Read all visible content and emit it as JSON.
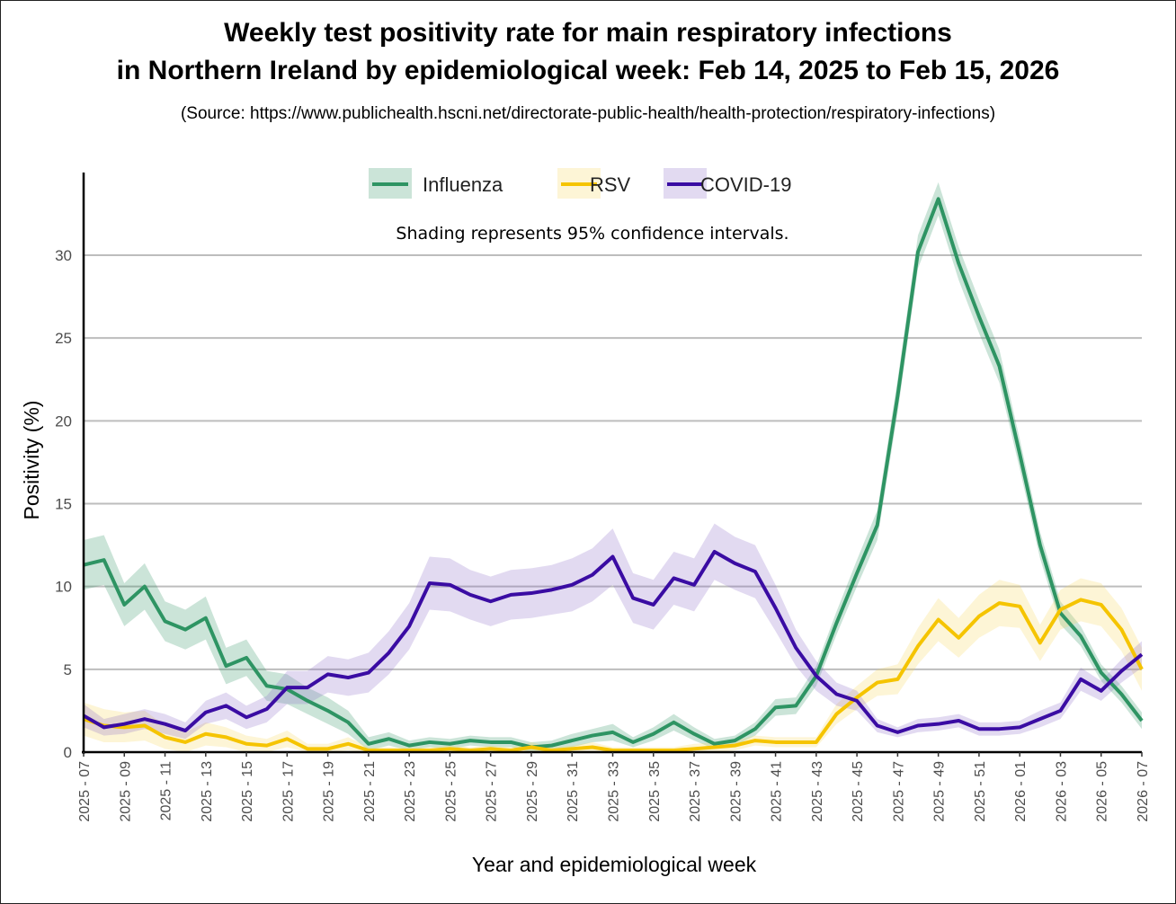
{
  "chart_data": {
    "type": "line",
    "title_line1": "Weekly test positivity rate for main respiratory infections",
    "title_line2": "in Northern Ireland by epidemiological week: Feb 14, 2025 to Feb 15, 2026",
    "subtitle": "(Source: https://www.publichealth.hscni.net/directorate-public-health/health-protection/respiratory-infections)",
    "annotation": "Shading represents 95% confidence intervals.",
    "xlabel": "Year and epidemiological week",
    "ylabel": "Positivity (%)",
    "ylim": [
      0,
      35
    ],
    "yticks": [
      0,
      5,
      10,
      15,
      20,
      25,
      30
    ],
    "grid": true,
    "legend_position": "top-center",
    "x": [
      "2025 - 07",
      "2025 - 08",
      "2025 - 09",
      "2025 - 10",
      "2025 - 11",
      "2025 - 12",
      "2025 - 13",
      "2025 - 14",
      "2025 - 15",
      "2025 - 16",
      "2025 - 17",
      "2025 - 18",
      "2025 - 19",
      "2025 - 20",
      "2025 - 21",
      "2025 - 22",
      "2025 - 23",
      "2025 - 24",
      "2025 - 25",
      "2025 - 26",
      "2025 - 27",
      "2025 - 28",
      "2025 - 29",
      "2025 - 30",
      "2025 - 31",
      "2025 - 32",
      "2025 - 33",
      "2025 - 34",
      "2025 - 35",
      "2025 - 36",
      "2025 - 37",
      "2025 - 38",
      "2025 - 39",
      "2025 - 40",
      "2025 - 41",
      "2025 - 42",
      "2025 - 43",
      "2025 - 44",
      "2025 - 45",
      "2025 - 46",
      "2025 - 47",
      "2025 - 48",
      "2025 - 49",
      "2025 - 50",
      "2025 - 51",
      "2025 - 52",
      "2026 - 01",
      "2026 - 02",
      "2026 - 03",
      "2026 - 04",
      "2026 - 05",
      "2026 - 06",
      "2026 - 07"
    ],
    "xtick_labels": [
      "2025 - 07",
      "2025 - 09",
      "2025 - 11",
      "2025 - 13",
      "2025 - 15",
      "2025 - 17",
      "2025 - 19",
      "2025 - 21",
      "2025 - 23",
      "2025 - 25",
      "2025 - 27",
      "2025 - 29",
      "2025 - 31",
      "2025 - 33",
      "2025 - 35",
      "2025 - 37",
      "2025 - 39",
      "2025 - 41",
      "2025 - 43",
      "2025 - 45",
      "2025 - 47",
      "2025 - 49",
      "2025 - 51",
      "2026 - 01",
      "2026 - 03",
      "2026 - 05",
      "2026 - 07"
    ],
    "series": [
      {
        "name": "Influenza",
        "color": "#2e9463",
        "band_color": "#2e9463",
        "values": [
          11.3,
          11.6,
          8.9,
          10.0,
          7.9,
          7.4,
          8.1,
          5.2,
          5.7,
          4.0,
          3.8,
          3.1,
          2.5,
          1.8,
          0.5,
          0.8,
          0.4,
          0.6,
          0.5,
          0.7,
          0.6,
          0.6,
          0.3,
          0.4,
          0.7,
          1.0,
          1.2,
          0.6,
          1.1,
          1.8,
          1.1,
          0.5,
          0.7,
          1.4,
          2.7,
          2.8,
          4.6,
          7.8,
          10.8,
          13.7,
          21.5,
          30.2,
          33.4,
          29.5,
          26.3,
          23.3,
          18.0,
          12.5,
          8.4,
          7.0,
          4.8,
          3.5,
          1.9
        ],
        "ci_halfwidth": [
          1.5,
          1.5,
          1.3,
          1.4,
          1.2,
          1.2,
          1.3,
          1.1,
          1.1,
          0.9,
          0.9,
          0.8,
          0.8,
          0.7,
          0.4,
          0.4,
          0.3,
          0.3,
          0.3,
          0.3,
          0.3,
          0.3,
          0.3,
          0.3,
          0.4,
          0.4,
          0.5,
          0.3,
          0.4,
          0.5,
          0.4,
          0.3,
          0.3,
          0.4,
          0.5,
          0.5,
          0.6,
          0.7,
          0.8,
          0.9,
          1.0,
          1.0,
          1.0,
          1.0,
          1.0,
          1.0,
          0.9,
          0.8,
          0.7,
          0.6,
          0.5,
          0.5,
          0.5
        ]
      },
      {
        "name": "RSV",
        "color": "#f5c400",
        "band_color": "#f8d75a",
        "values": [
          2.0,
          1.6,
          1.5,
          1.6,
          0.9,
          0.6,
          1.1,
          0.9,
          0.5,
          0.4,
          0.8,
          0.2,
          0.2,
          0.5,
          0.1,
          0.1,
          0.1,
          0.1,
          0.2,
          0.1,
          0.2,
          0.1,
          0.3,
          0.1,
          0.2,
          0.3,
          0.1,
          0.1,
          0.1,
          0.1,
          0.2,
          0.3,
          0.4,
          0.7,
          0.6,
          0.6,
          0.6,
          2.3,
          3.3,
          4.2,
          4.4,
          6.4,
          8.0,
          6.9,
          8.2,
          9.0,
          8.8,
          6.6,
          8.6,
          9.2,
          8.9,
          7.4,
          5.0
        ],
        "ci_halfwidth": [
          1.0,
          1.0,
          0.9,
          0.9,
          0.7,
          0.6,
          0.7,
          0.6,
          0.5,
          0.4,
          0.5,
          0.3,
          0.3,
          0.4,
          0.2,
          0.2,
          0.2,
          0.2,
          0.2,
          0.2,
          0.2,
          0.2,
          0.3,
          0.2,
          0.2,
          0.3,
          0.2,
          0.2,
          0.2,
          0.2,
          0.3,
          0.3,
          0.3,
          0.3,
          0.3,
          0.3,
          0.3,
          0.6,
          0.7,
          0.8,
          0.9,
          1.1,
          1.3,
          1.2,
          1.3,
          1.4,
          1.3,
          1.1,
          1.2,
          1.3,
          1.3,
          1.3,
          1.3
        ]
      },
      {
        "name": "COVID-19",
        "color": "#3a0ca3",
        "band_color": "#8b6cc7",
        "values": [
          2.2,
          1.5,
          1.7,
          2.0,
          1.7,
          1.3,
          2.4,
          2.8,
          2.1,
          2.6,
          3.9,
          3.9,
          4.7,
          4.5,
          4.8,
          6.0,
          7.6,
          10.2,
          10.1,
          9.5,
          9.1,
          9.5,
          9.6,
          9.8,
          10.1,
          10.7,
          11.8,
          9.3,
          8.9,
          10.5,
          10.1,
          12.1,
          11.4,
          10.9,
          8.7,
          6.3,
          4.6,
          3.5,
          3.1,
          1.6,
          1.2,
          1.6,
          1.7,
          1.9,
          1.4,
          1.4,
          1.5,
          2.0,
          2.5,
          4.4,
          3.7,
          4.9,
          5.9
        ],
        "ci_halfwidth": [
          0.7,
          0.5,
          0.6,
          0.6,
          0.6,
          0.5,
          0.7,
          0.8,
          0.7,
          0.8,
          1.0,
          1.0,
          1.1,
          1.1,
          1.2,
          1.3,
          1.4,
          1.6,
          1.6,
          1.5,
          1.5,
          1.5,
          1.5,
          1.5,
          1.6,
          1.6,
          1.7,
          1.5,
          1.5,
          1.6,
          1.6,
          1.7,
          1.6,
          1.6,
          1.4,
          1.1,
          0.9,
          0.7,
          0.6,
          0.4,
          0.3,
          0.4,
          0.4,
          0.4,
          0.4,
          0.4,
          0.4,
          0.5,
          0.5,
          0.7,
          0.6,
          0.7,
          0.8
        ]
      }
    ]
  }
}
